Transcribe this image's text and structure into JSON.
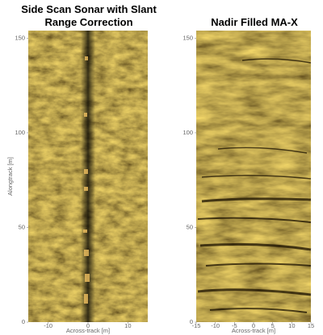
{
  "chart_data": [
    {
      "type": "image",
      "title": "Side Scan Sonar with Slant Range Correction",
      "xlabel": "Across-track [m]",
      "ylabel": "Alongtrack [m]",
      "xlim": [
        -15,
        15
      ],
      "ylim": [
        0,
        154
      ],
      "xticks": [
        -10,
        0,
        10
      ],
      "yticks": [
        0,
        50,
        100,
        150
      ]
    },
    {
      "type": "image",
      "title": "Nadir Filled MA-X",
      "xlabel": "Across-track [m]",
      "xlim": [
        -15,
        15
      ],
      "ylim": [
        0,
        154
      ],
      "xticks": [
        -15,
        -10,
        -5,
        0,
        5,
        10,
        15
      ],
      "yticks": [
        0,
        50,
        100,
        150
      ]
    }
  ]
}
